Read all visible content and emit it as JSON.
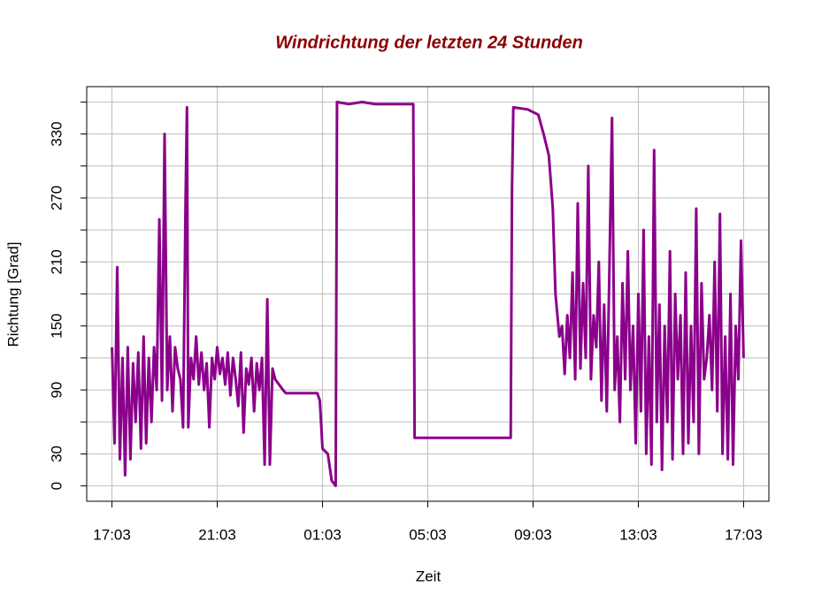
{
  "chart_data": {
    "type": "line",
    "title": "Windrichtung der letzten 24 Stunden",
    "xlabel": "Zeit",
    "ylabel": "Richtung [Grad]",
    "color": "#8b008b",
    "title_color": "#8b0000",
    "grid": true,
    "xlim": [
      -0.96,
      24.96
    ],
    "xticks": [
      {
        "value": 0,
        "label": "17:03"
      },
      {
        "value": 4,
        "label": "21:03"
      },
      {
        "value": 8,
        "label": "01:03"
      },
      {
        "value": 12,
        "label": "05:03"
      },
      {
        "value": 16,
        "label": "09:03"
      },
      {
        "value": 20,
        "label": "13:03"
      },
      {
        "value": 24,
        "label": "17:03"
      }
    ],
    "ylim": [
      -14.4,
      374.4
    ],
    "yticks": [
      0,
      30,
      90,
      150,
      210,
      270,
      330
    ],
    "yticks_unlabeled": [
      60,
      120,
      180,
      240,
      300,
      360
    ],
    "x": [
      0.0,
      0.1,
      0.2,
      0.3,
      0.4,
      0.5,
      0.6,
      0.7,
      0.8,
      0.9,
      1.0,
      1.1,
      1.2,
      1.3,
      1.4,
      1.5,
      1.6,
      1.7,
      1.8,
      1.9,
      2.0,
      2.1,
      2.2,
      2.3,
      2.4,
      2.5,
      2.6,
      2.7,
      2.8,
      2.85,
      2.9,
      3.0,
      3.1,
      3.2,
      3.3,
      3.4,
      3.5,
      3.6,
      3.7,
      3.8,
      3.9,
      4.0,
      4.1,
      4.2,
      4.3,
      4.4,
      4.5,
      4.6,
      4.7,
      4.8,
      4.9,
      5.0,
      5.1,
      5.2,
      5.3,
      5.4,
      5.5,
      5.6,
      5.7,
      5.8,
      5.9,
      6.0,
      6.1,
      6.2,
      6.5,
      6.6,
      7.8,
      7.9,
      8.0,
      8.2,
      8.35,
      8.5,
      8.55,
      9.0,
      9.5,
      10.0,
      11.45,
      11.5,
      15.15,
      15.2,
      15.25,
      15.8,
      16.2,
      16.4,
      16.6,
      16.75,
      16.85,
      17.0,
      17.1,
      17.2,
      17.3,
      17.4,
      17.5,
      17.6,
      17.7,
      17.8,
      17.9,
      18.0,
      18.1,
      18.2,
      18.3,
      18.4,
      18.5,
      18.6,
      18.7,
      18.8,
      18.9,
      19.0,
      19.1,
      19.2,
      19.3,
      19.4,
      19.5,
      19.6,
      19.7,
      19.8,
      19.9,
      20.0,
      20.1,
      20.2,
      20.3,
      20.4,
      20.5,
      20.6,
      20.7,
      20.8,
      20.9,
      21.0,
      21.1,
      21.2,
      21.3,
      21.4,
      21.5,
      21.6,
      21.7,
      21.8,
      21.9,
      22.0,
      22.1,
      22.2,
      22.3,
      22.4,
      22.5,
      22.6,
      22.7,
      22.8,
      22.9,
      23.0,
      23.1,
      23.2,
      23.3,
      23.4,
      23.5,
      23.6,
      23.7,
      23.8,
      23.9,
      24.0
    ],
    "values": [
      130,
      40,
      205,
      25,
      120,
      10,
      130,
      25,
      115,
      60,
      125,
      35,
      140,
      40,
      120,
      60,
      130,
      90,
      250,
      80,
      330,
      90,
      140,
      70,
      130,
      110,
      100,
      55,
      270,
      355,
      55,
      120,
      100,
      140,
      95,
      125,
      90,
      115,
      55,
      120,
      100,
      130,
      105,
      120,
      95,
      125,
      85,
      120,
      100,
      75,
      125,
      50,
      110,
      95,
      120,
      70,
      115,
      90,
      120,
      20,
      175,
      20,
      110,
      100,
      90,
      87,
      87,
      80,
      35,
      30,
      5,
      0,
      360,
      358,
      360,
      358,
      358,
      45,
      45,
      280,
      355,
      353,
      348,
      330,
      310,
      260,
      180,
      140,
      150,
      105,
      160,
      120,
      200,
      100,
      265,
      110,
      190,
      120,
      300,
      100,
      160,
      130,
      210,
      80,
      170,
      70,
      200,
      345,
      90,
      140,
      60,
      190,
      100,
      220,
      90,
      150,
      40,
      180,
      70,
      240,
      30,
      140,
      20,
      315,
      60,
      170,
      15,
      150,
      60,
      220,
      25,
      180,
      100,
      160,
      30,
      200,
      40,
      150,
      60,
      260,
      30,
      190,
      100,
      120,
      160,
      90,
      210,
      70,
      255,
      30,
      140,
      25,
      180,
      20,
      150,
      100,
      230,
      120
    ]
  }
}
